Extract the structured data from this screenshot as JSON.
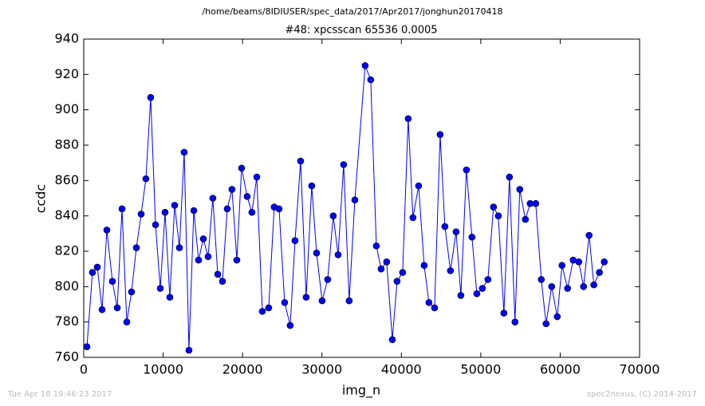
{
  "chart_data": {
    "type": "line",
    "header": "/home/beams/8IDIUSER/spec_data/2017/Apr2017/jonghun20170418",
    "title": "#48: xpcsscan 65536 0.0005",
    "x_label": "img_n",
    "y_label": "ccdc",
    "footer_left": "Tue Apr 18 19:46:23 2017",
    "footer_right": "spec2nexus, (C) 2014-2017",
    "xlim": [
      0,
      70000
    ],
    "xticks": [
      0,
      10000,
      20000,
      30000,
      40000,
      50000,
      60000,
      70000
    ],
    "ylim": [
      760,
      940
    ],
    "yticks": [
      760,
      780,
      800,
      820,
      840,
      860,
      880,
      900,
      920,
      940
    ],
    "color": "#0000ff",
    "x": [
      400,
      1100,
      1710,
      2310,
      2910,
      3610,
      4220,
      4820,
      5420,
      6020,
      6630,
      7230,
      7830,
      8430,
      9040,
      9640,
      10240,
      10840,
      11450,
      12050,
      12650,
      13250,
      13860,
      14460,
      15060,
      15660,
      16260,
      16870,
      17470,
      18070,
      18670,
      19280,
      19880,
      20580,
      21180,
      21790,
      22490,
      23290,
      23990,
      24600,
      25300,
      26000,
      26610,
      27310,
      28010,
      28710,
      29320,
      30020,
      30720,
      31420,
      32030,
      32730,
      33430,
      34140,
      35440,
      36140,
      36850,
      37450,
      38150,
      38860,
      39460,
      40160,
      40860,
      41460,
      42170,
      42870,
      43470,
      44180,
      44880,
      45480,
      46180,
      46890,
      47490,
      48190,
      48890,
      49500,
      50200,
      50900,
      51600,
      52210,
      52910,
      53610,
      54310,
      54910,
      55620,
      56220,
      56920,
      57620,
      58220,
      58930,
      59630,
      60230,
      60930,
      61630,
      62340,
      62940,
      63640,
      64240,
      64940,
      65550
    ],
    "values": [
      766,
      808,
      811,
      787,
      832,
      803,
      788,
      844,
      780,
      797,
      822,
      841,
      861,
      907,
      835,
      799,
      842,
      794,
      846,
      822,
      876,
      764,
      843,
      815,
      827,
      817,
      850,
      807,
      803,
      844,
      855,
      815,
      867,
      851,
      842,
      862,
      786,
      788,
      845,
      844,
      791,
      778,
      826,
      871,
      794,
      857,
      819,
      792,
      804,
      840,
      818,
      869,
      792,
      849,
      925,
      917,
      823,
      810,
      814,
      770,
      803,
      808,
      895,
      839,
      857,
      812,
      791,
      788,
      886,
      834,
      809,
      831,
      795,
      866,
      828,
      796,
      799,
      804,
      845,
      840,
      785,
      862,
      780,
      855,
      838,
      847,
      847,
      804,
      779,
      800,
      783,
      812,
      799,
      815,
      814,
      800,
      829,
      801,
      808,
      814
    ]
  }
}
